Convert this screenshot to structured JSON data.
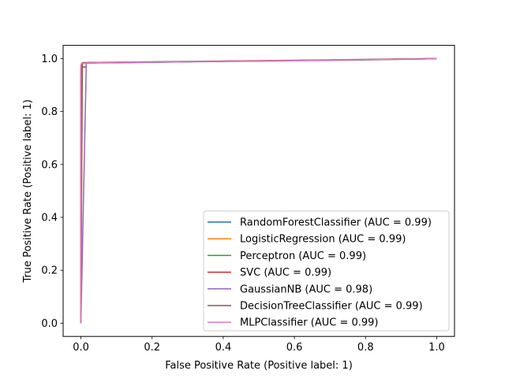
{
  "chart_data": {
    "type": "line",
    "title": "",
    "xlabel": "False Positive Rate (Positive label: 1)",
    "ylabel": "True Positive Rate (Positive label: 1)",
    "xlim": [
      -0.05,
      1.05
    ],
    "ylim": [
      -0.05,
      1.05
    ],
    "xticks": [
      0.0,
      0.2,
      0.4,
      0.6,
      0.8,
      1.0
    ],
    "xtick_labels": [
      "0.0",
      "0.2",
      "0.4",
      "0.6",
      "0.8",
      "1.0"
    ],
    "yticks": [
      0.0,
      0.2,
      0.4,
      0.6,
      0.8,
      1.0
    ],
    "ytick_labels": [
      "0.0",
      "0.2",
      "0.4",
      "0.6",
      "0.8",
      "1.0"
    ],
    "grid": false,
    "legend_position": "lower-right",
    "series": [
      {
        "name": "RandomForestClassifier (AUC = 0.99)",
        "color": "#1f77b4",
        "x": [
          0,
          0,
          0.002,
          0.01,
          0.05,
          0.2,
          0.4,
          0.6,
          0.8,
          0.95,
          1.0
        ],
        "y": [
          0,
          0.97,
          0.981,
          0.983,
          0.984,
          0.986,
          0.989,
          0.992,
          0.995,
          0.998,
          1.0
        ]
      },
      {
        "name": "LogisticRegression (AUC = 0.99)",
        "color": "#ff7f0e",
        "x": [
          0,
          0,
          0.003,
          0.01,
          0.05,
          0.2,
          0.4,
          0.6,
          0.8,
          0.95,
          1.0
        ],
        "y": [
          0,
          0.975,
          0.982,
          0.983,
          0.984,
          0.987,
          0.99,
          0.993,
          0.996,
          0.998,
          1.0
        ]
      },
      {
        "name": "Perceptron (AUC = 0.99)",
        "color": "#2ca02c",
        "x": [
          0,
          0.002,
          0.005,
          0.02,
          0.2,
          0.4,
          0.6,
          0.8,
          1.0
        ],
        "y": [
          0,
          0.97,
          0.982,
          0.983,
          0.986,
          0.99,
          0.993,
          0.996,
          1.0
        ]
      },
      {
        "name": "SVC (AUC = 0.99)",
        "color": "#d62728",
        "x": [
          0,
          0,
          0.005,
          0.015,
          0.015,
          0.05,
          0.2,
          0.4,
          0.6,
          0.8,
          1.0
        ],
        "y": [
          0,
          0.965,
          0.968,
          0.968,
          0.984,
          0.984,
          0.987,
          0.99,
          0.993,
          0.996,
          1.0
        ]
      },
      {
        "name": "GaussianNB (AUC = 0.98)",
        "color": "#9467bd",
        "x": [
          0,
          0.015,
          0.015,
          0.05,
          0.2,
          0.4,
          0.6,
          0.8,
          1.0
        ],
        "y": [
          0,
          0.97,
          0.984,
          0.984,
          0.986,
          0.99,
          0.993,
          0.996,
          1.0
        ]
      },
      {
        "name": "DecisionTreeClassifier (AUC = 0.99)",
        "color": "#8c564b",
        "x": [
          0,
          0.004,
          1.0
        ],
        "y": [
          0,
          0.985,
          1.0
        ]
      },
      {
        "name": "MLPClassifier (AUC = 0.99)",
        "color": "#e377c2",
        "x": [
          0,
          0,
          0.003,
          0.01,
          0.05,
          0.2,
          0.4,
          0.6,
          0.8,
          0.95,
          1.0
        ],
        "y": [
          0,
          0.978,
          0.982,
          0.983,
          0.985,
          0.987,
          0.99,
          0.993,
          0.996,
          0.998,
          1.0
        ]
      }
    ]
  }
}
